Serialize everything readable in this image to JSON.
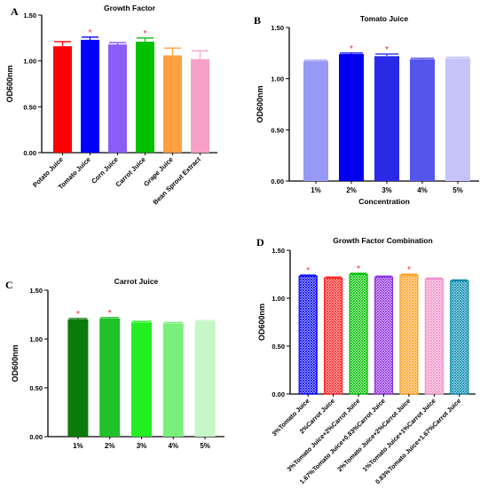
{
  "chart_data": [
    {
      "panel": "A",
      "type": "bar",
      "title": "Growth Factor",
      "xlabel": "",
      "ylabel": "OD600nm",
      "ylim": [
        0.0,
        1.5
      ],
      "yticks": [
        "0.00",
        "0.50",
        "1.00",
        "1.50"
      ],
      "categories": [
        "Potato Juice",
        "Tomato Juice",
        "Corn Juice",
        "Carrot Juice",
        "Grape Juice",
        "Bean Sprout Extract"
      ],
      "values": [
        1.16,
        1.23,
        1.18,
        1.21,
        1.06,
        1.02
      ],
      "errors": [
        0.05,
        0.03,
        0.02,
        0.04,
        0.08,
        0.09
      ],
      "significance": [
        "",
        "*",
        "",
        "*",
        "",
        ""
      ],
      "colors": [
        "#ff0000",
        "#0000ff",
        "#8b5cf6",
        "#00c000",
        "#ffa040",
        "#f9a0c8"
      ],
      "pattern": "solid",
      "xtick_rotation": -45
    },
    {
      "panel": "B",
      "type": "bar",
      "title": "Tomato Juice",
      "xlabel": "Concentration",
      "ylabel": "OD600nm",
      "ylim": [
        0.0,
        1.5
      ],
      "yticks": [
        "0.00",
        "0.50",
        "1.00",
        "1.50"
      ],
      "categories": [
        "1%",
        "2%",
        "3%",
        "4%",
        "5%"
      ],
      "values": [
        1.17,
        1.24,
        1.22,
        1.19,
        1.2
      ],
      "errors": [
        0.01,
        0.01,
        0.02,
        0.01,
        0.01
      ],
      "significance": [
        "",
        "*",
        "*",
        "",
        ""
      ],
      "colors": [
        "#9898f6",
        "#0000ee",
        "#2a2ae6",
        "#5555ee",
        "#c4c4fa"
      ],
      "pattern": "solid",
      "xtick_rotation": 0
    },
    {
      "panel": "C",
      "type": "bar",
      "title": "Carrot Juice",
      "xlabel": "",
      "ylabel": "OD600nm",
      "ylim": [
        0.0,
        1.5
      ],
      "yticks": [
        "0.00",
        "0.50",
        "1.00",
        "1.50"
      ],
      "categories": [
        "1%",
        "2%",
        "3%",
        "4%",
        "5%"
      ],
      "values": [
        1.2,
        1.21,
        1.17,
        1.16,
        1.18
      ],
      "errors": [
        0.01,
        0.01,
        0.01,
        0.01,
        0.01
      ],
      "significance": [
        "*",
        "*",
        "",
        "",
        ""
      ],
      "colors": [
        "#0a7a0a",
        "#22c02a",
        "#22ee22",
        "#7af07a",
        "#c6f7c6"
      ],
      "pattern": "solid",
      "xtick_rotation": 0
    },
    {
      "panel": "D",
      "type": "bar",
      "title": "Growth Factor Combination",
      "xlabel": "",
      "ylabel": "OD600nm",
      "ylim": [
        0.0,
        1.5
      ],
      "yticks": [
        "0.00",
        "0.50",
        "1.00",
        "1.50"
      ],
      "categories": [
        "3%Tomato Juice",
        "2%Carrot Juice",
        "3%Tomato Juice+2%Carrot Juice",
        "1.67%Tomato Juice+0.83%Carrot Juice",
        "2%Tomato Juice+2%Carrot Juice",
        "1%Tomato Juice+1%Carrot Juice",
        "0.83%Tomato Juice+1.67%Carrot Juice"
      ],
      "values": [
        1.23,
        1.21,
        1.25,
        1.22,
        1.24,
        1.2,
        1.18
      ],
      "errors": [
        0.01,
        0.01,
        0.01,
        0.01,
        0.01,
        0.01,
        0.01
      ],
      "significance": [
        "*",
        "",
        "*",
        "",
        "*",
        "",
        ""
      ],
      "colors": [
        "#0000ff",
        "#ff2020",
        "#00c000",
        "#8a2be2",
        "#ffa020",
        "#f090c8",
        "#0088aa"
      ],
      "pattern": "crosshatch",
      "xtick_rotation": -45
    }
  ]
}
